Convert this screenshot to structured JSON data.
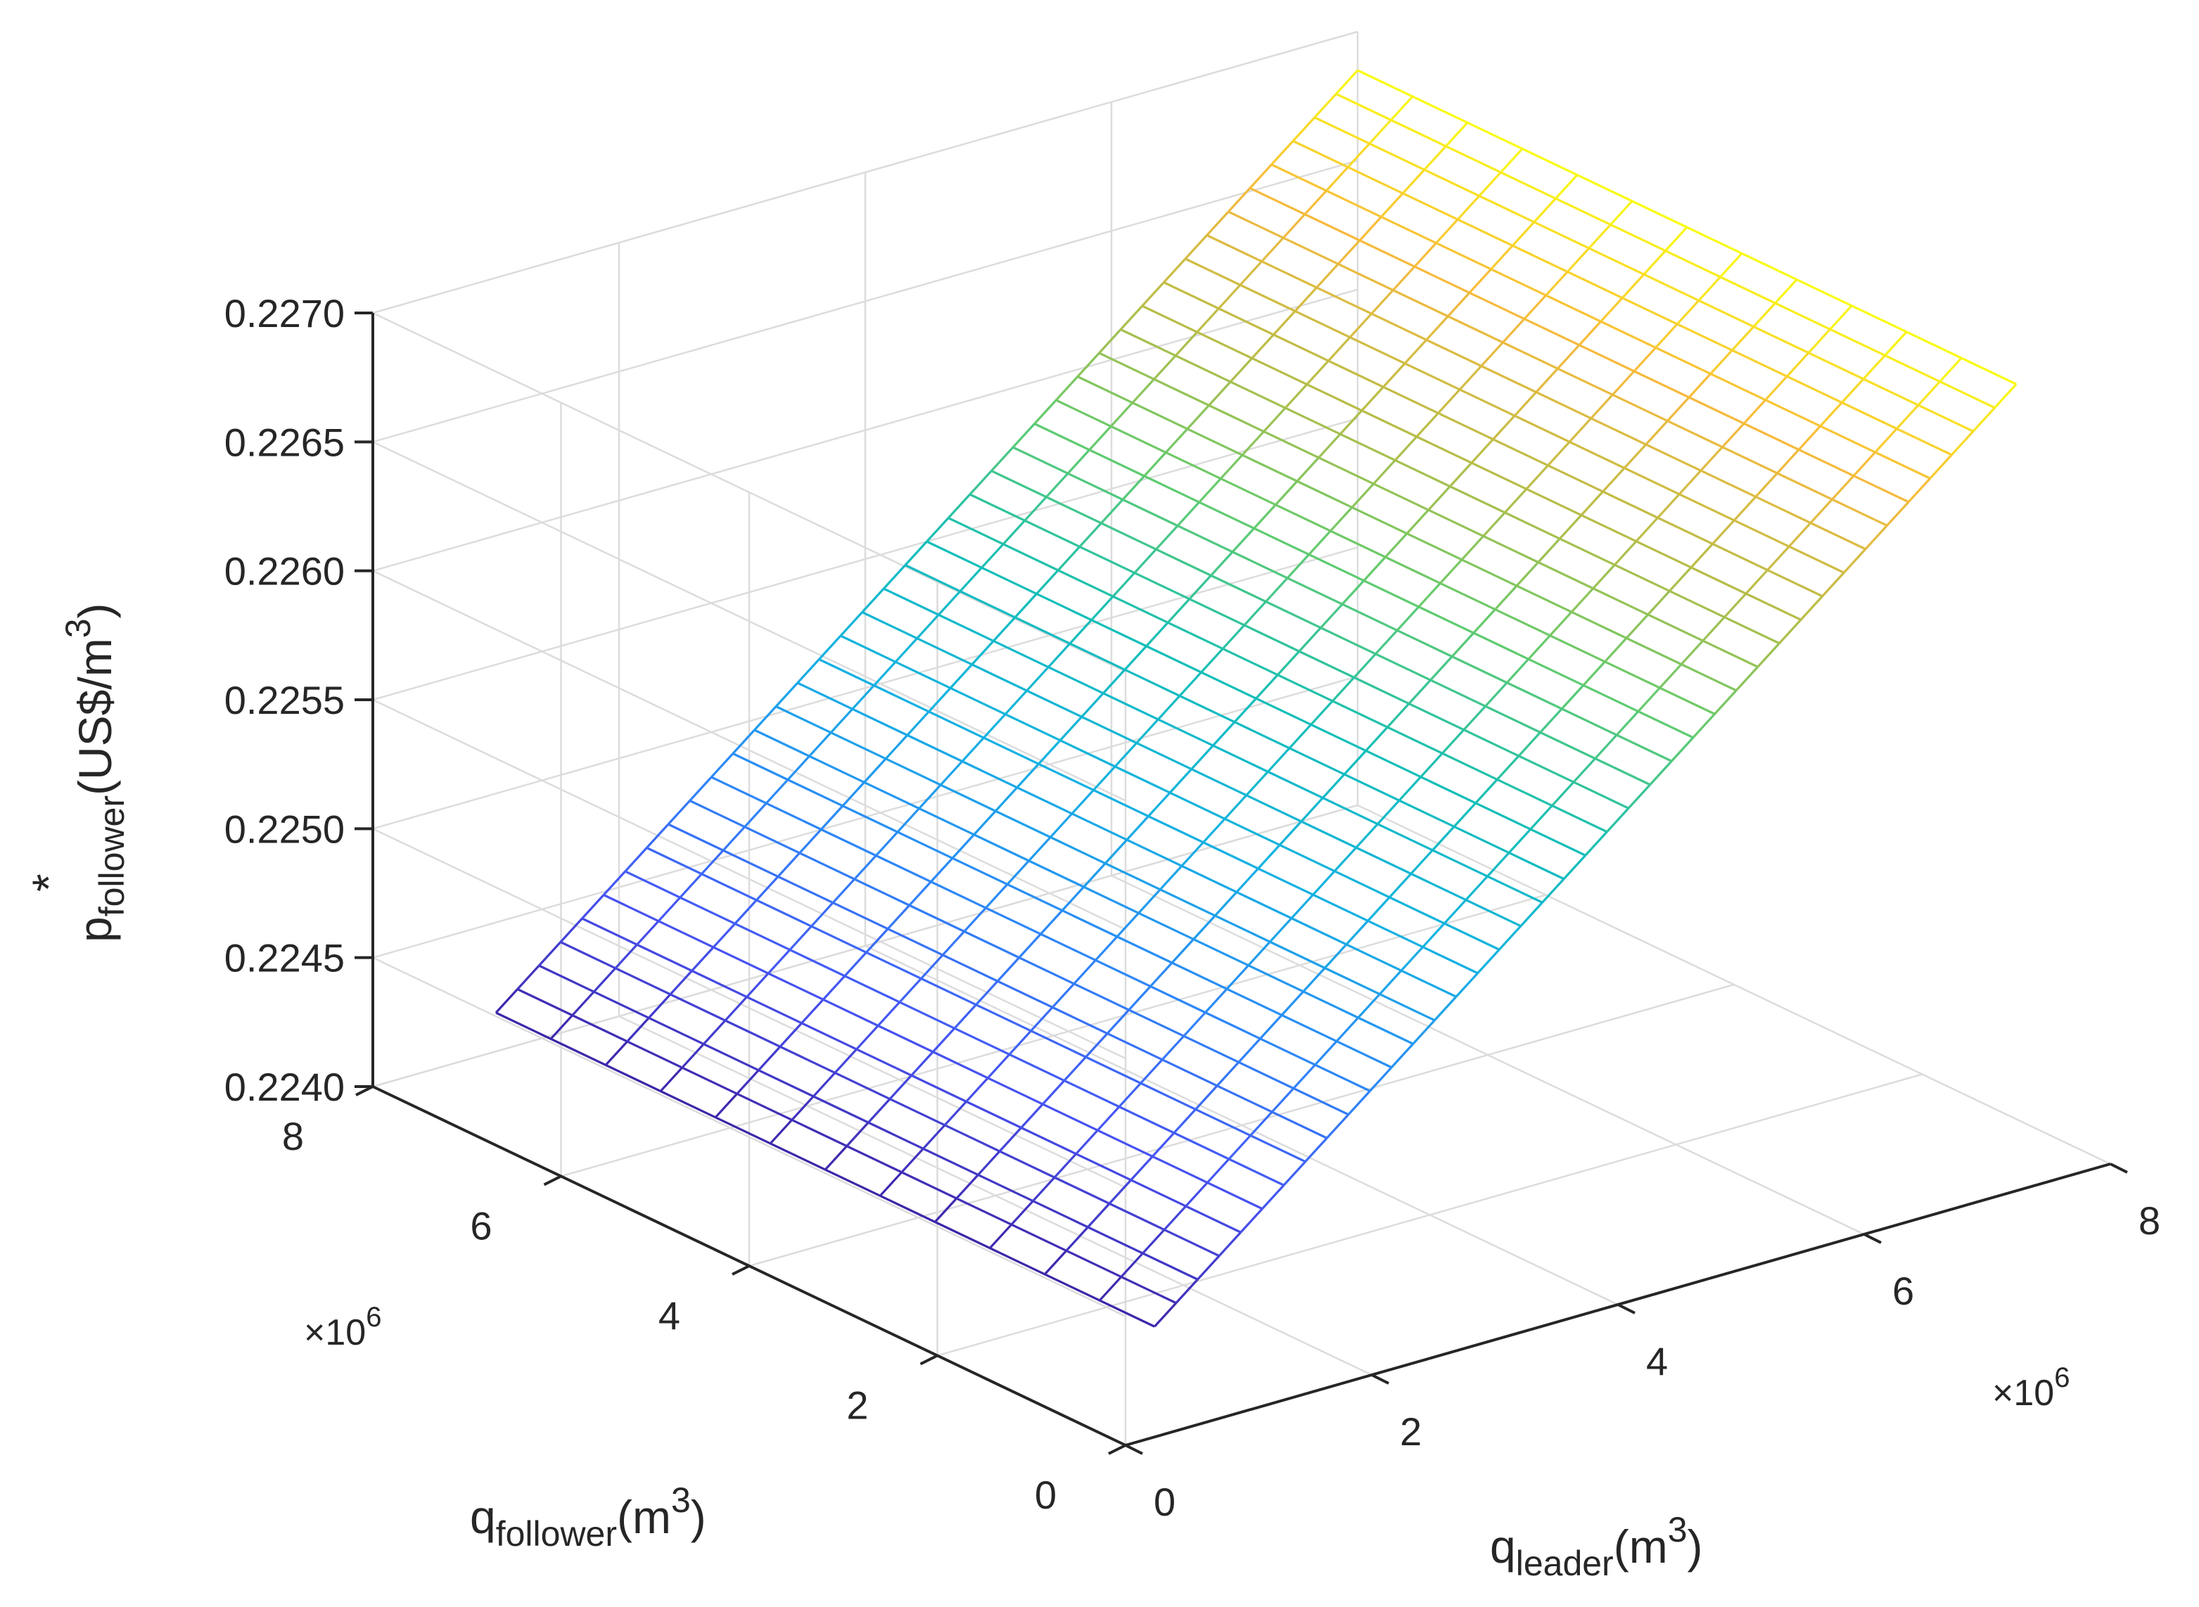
{
  "chart_data": {
    "type": "surface-mesh",
    "title": "",
    "x_axis": {
      "label": "q",
      "label_subscript": "leader",
      "label_unit": "(m",
      "label_unit_sup": "3",
      "label_unit_close": ")",
      "range": [
        0,
        8000000
      ],
      "ticks": [
        0,
        2000000,
        4000000,
        6000000,
        8000000
      ],
      "tick_labels": [
        "0",
        "2",
        "4",
        "6",
        "8"
      ],
      "multiplier_prefix": "×10",
      "multiplier_exponent": "6"
    },
    "y_axis": {
      "label": "q",
      "label_subscript": "follower",
      "label_unit": "(m",
      "label_unit_sup": "3",
      "label_unit_close": ")",
      "range": [
        0,
        8000000
      ],
      "ticks": [
        0,
        2000000,
        4000000,
        6000000,
        8000000
      ],
      "tick_labels": [
        "0",
        "2",
        "4",
        "6",
        "8"
      ],
      "multiplier_prefix": "×10",
      "multiplier_exponent": "6"
    },
    "z_axis": {
      "label": "p",
      "label_superscript": "*",
      "label_subscript": "follower",
      "label_unit": "(US$/m",
      "label_unit_sup": "3",
      "label_unit_close": ")",
      "range": [
        0.224,
        0.227
      ],
      "ticks": [
        0.224,
        0.2245,
        0.225,
        0.2255,
        0.226,
        0.2265,
        0.227
      ],
      "tick_labels": [
        "0.2240",
        "0.2245",
        "0.2250",
        "0.2255",
        "0.2260",
        "0.2265",
        "0.2270"
      ]
    },
    "surface": {
      "x_range": [
        1000000,
        8000000
      ],
      "y_range": [
        1000000,
        8000000
      ],
      "z_min": 0.22415,
      "z_max": 0.22685,
      "z_depends_on": "q_leader",
      "mesh_x_lines": 41,
      "mesh_y_lines": 13,
      "colormap": "parula"
    },
    "grid": true
  }
}
